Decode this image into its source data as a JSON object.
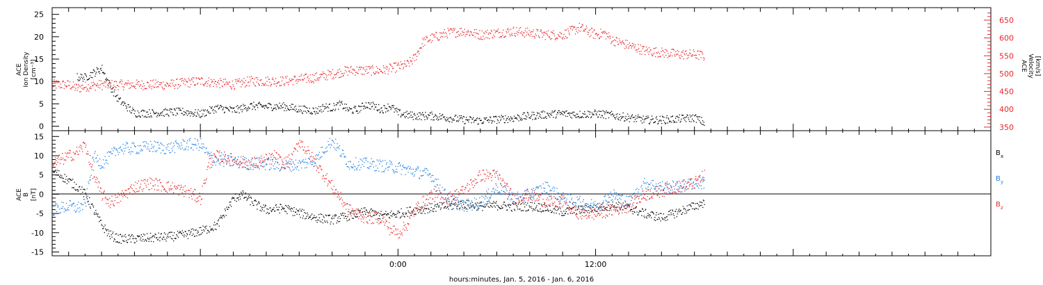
{
  "xlabel": "hours:minutes, Jan.  5, 2016 - Jan.  6, 2016",
  "colors": {
    "black": "#000000",
    "red": "#e8262b",
    "blue": "#1f7fe0"
  },
  "chart_data": [
    {
      "type": "scatter",
      "panel": "top",
      "ylabel_left": [
        "ACE",
        "Ion Density",
        "[cm⁻³]"
      ],
      "ylabel_right": [
        "ACE",
        "Velocity",
        "[km/s]"
      ],
      "x_range_hours": [
        -21,
        36
      ],
      "x_tick_labels": [
        {
          "hour": 0,
          "label": "0:00"
        },
        {
          "hour": 12,
          "label": "12:00"
        }
      ],
      "ylim_left": [
        -1,
        26.5
      ],
      "left_ticks": [
        "0",
        "5",
        "10",
        "15",
        "20",
        "25"
      ],
      "ylim_right": [
        340,
        685
      ],
      "right_ticks": [
        "350",
        "400",
        "450",
        "500",
        "550",
        "600",
        "650"
      ],
      "series": [
        {
          "color": "#000000",
          "axis": "left",
          "x": [
            -19.5,
            -19.0,
            -18.5,
            -18.0,
            -17.5,
            -17.0,
            -16.5,
            -16.0,
            -15.0,
            -14.0,
            -13.0,
            -12.0,
            -11.0,
            -10.0,
            -9.0,
            -8.0,
            -7.0,
            -6.0,
            -5.0,
            -4.5,
            -4.0,
            -3.5,
            -3.0,
            -2.5,
            -2.0,
            -1.5,
            -1.0,
            -0.5,
            0.0,
            0.5,
            1.0,
            2.0,
            3.0,
            4.0,
            5.0,
            6.0,
            7.0,
            8.0,
            9.0,
            10.0,
            11.0,
            12.0,
            13.0,
            14.0,
            15.0,
            16.0,
            17.0,
            18.0,
            18.6
          ],
          "values": [
            11,
            11,
            12,
            13,
            9,
            6,
            4.5,
            3,
            3,
            3.2,
            3.3,
            2.8,
            4.2,
            3.6,
            4.6,
            4.5,
            4.5,
            3.9,
            3.5,
            4.4,
            4.2,
            5,
            3.7,
            3.7,
            4.9,
            4.6,
            3.8,
            4.6,
            3,
            2.6,
            2.4,
            2.4,
            2,
            1.5,
            1.3,
            1.6,
            1.9,
            2.4,
            2.7,
            2.9,
            2.7,
            2.9,
            2.5,
            2,
            1.5,
            1.5,
            1.7,
            2,
            0.8
          ]
        },
        {
          "color": "#e8262b",
          "axis": "right",
          "x": [
            -21.0,
            -20.0,
            -19.5,
            -19.0,
            -18.0,
            -17.0,
            -16.0,
            -15.0,
            -14.0,
            -13.0,
            -12.0,
            -11.0,
            -10.0,
            -9.0,
            -8.0,
            -7.0,
            -6.0,
            -5.0,
            -4.0,
            -3.0,
            -2.0,
            -1.0,
            0.0,
            0.5,
            1.0,
            1.5,
            2.0,
            3.0,
            4.0,
            5.0,
            6.0,
            7.0,
            8.0,
            9.0,
            10.0,
            10.5,
            11.0,
            11.5,
            12.0,
            12.5,
            13.0,
            14.0,
            15.0,
            16.0,
            17.0,
            18.0,
            18.6
          ],
          "values": [
            470,
            470,
            460,
            465,
            470,
            470,
            470,
            470,
            470,
            475,
            480,
            475,
            470,
            480,
            480,
            480,
            485,
            490,
            500,
            510,
            510,
            510,
            520,
            525,
            545,
            590,
            600,
            615,
            620,
            610,
            615,
            620,
            615,
            610,
            610,
            620,
            630,
            620,
            610,
            615,
            595,
            580,
            565,
            560,
            555,
            555,
            550
          ]
        }
      ]
    },
    {
      "type": "scatter",
      "panel": "bottom",
      "ylabel_left": [
        "ACE",
        "B",
        "[nT]"
      ],
      "x_range_hours": [
        -21,
        36
      ],
      "ylim": [
        -16,
        16.5
      ],
      "left_ticks": [
        "-15",
        "-10",
        "-5",
        "0",
        "5",
        "10",
        "15"
      ],
      "series": [
        {
          "name": "Bx",
          "color": "#000000",
          "x": [
            -21.0,
            -20.5,
            -20.0,
            -19.5,
            -19.0,
            -18.5,
            -18.0,
            -17.5,
            -17.0,
            -16.0,
            -15.0,
            -14.0,
            -13.0,
            -12.0,
            -11.0,
            -10.0,
            -9.5,
            -9.0,
            -8.5,
            -8.0,
            -7.0,
            -6.0,
            -5.0,
            -4.0,
            -3.0,
            -2.0,
            -1.0,
            0.0,
            1.0,
            2.0,
            3.0,
            4.0,
            5.0,
            6.0,
            7.0,
            8.0,
            9.0,
            10.0,
            11.0,
            12.0,
            13.0,
            14.0,
            15.0,
            16.0,
            17.0,
            18.0,
            18.6
          ],
          "values": [
            6,
            5,
            3.5,
            2,
            0,
            -4,
            -8,
            -10.5,
            -11.5,
            -11.5,
            -11.2,
            -11,
            -10.5,
            -9.5,
            -8,
            -1,
            0,
            -1.5,
            -3,
            -4,
            -3.5,
            -4.8,
            -6,
            -6.5,
            -5.5,
            -4.5,
            -5.5,
            -5,
            -4,
            -3.5,
            -3,
            -2.5,
            -3,
            -2.8,
            -3.2,
            -3,
            -3.5,
            -4.5,
            -4,
            -3.5,
            -2.8,
            -3.5,
            -5,
            -6,
            -4.5,
            -3,
            -2
          ]
        },
        {
          "name": "By",
          "color": "#1f7fe0",
          "x": [
            -21.0,
            -20.0,
            -19.5,
            -19.0,
            -18.5,
            -18.0,
            -17.0,
            -16.0,
            -15.0,
            -14.0,
            -13.0,
            -12.0,
            -11.5,
            -11.0,
            -10.0,
            -9.0,
            -8.0,
            -7.0,
            -6.0,
            -5.0,
            -4.5,
            -4.0,
            -3.0,
            -2.0,
            -1.0,
            0.0,
            1.0,
            2.0,
            3.0,
            4.0,
            5.0,
            6.0,
            7.0,
            8.0,
            9.0,
            10.0,
            11.0,
            12.0,
            13.0,
            14.0,
            15.0,
            16.0,
            17.0,
            18.0,
            18.6
          ],
          "values": [
            -4,
            -3,
            -3.5,
            -2.5,
            10,
            8,
            12,
            12,
            12.5,
            12,
            13,
            13,
            10,
            9,
            8.5,
            8,
            8,
            7.5,
            7.8,
            9,
            12,
            14,
            8,
            8,
            7.5,
            7,
            6,
            5,
            -1,
            -3,
            -2,
            2,
            -1,
            0,
            2,
            -1,
            -2,
            -3,
            0,
            -2,
            3,
            2,
            2,
            3,
            3
          ]
        },
        {
          "name": "Bz",
          "color": "#e8262b",
          "x": [
            -21.0,
            -20.5,
            -20.0,
            -19.5,
            -19.0,
            -18.5,
            -18.0,
            -17.5,
            -17.0,
            -16.0,
            -15.0,
            -14.0,
            -13.0,
            -12.0,
            -11.5,
            -11.0,
            -10.0,
            -9.0,
            -8.0,
            -7.5,
            -7.0,
            -6.5,
            -6.0,
            -5.0,
            -4.0,
            -3.0,
            -2.0,
            -1.0,
            -0.5,
            0.0,
            0.5,
            1.0,
            2.0,
            3.0,
            4.0,
            5.0,
            6.0,
            7.0,
            8.0,
            9.0,
            10.0,
            11.0,
            12.0,
            13.0,
            14.0,
            15.0,
            16.0,
            17.0,
            18.0,
            18.6
          ],
          "values": [
            8,
            9,
            10,
            11,
            13,
            5,
            0,
            -2,
            -1,
            2,
            3,
            2,
            1,
            -1,
            8,
            10,
            9,
            8,
            9,
            10,
            8,
            9,
            14,
            8,
            2,
            -4,
            -6,
            -6,
            -9,
            -10,
            -8,
            -4,
            0,
            -1,
            1,
            5,
            5,
            -1,
            0,
            -2,
            -2,
            -5,
            -5,
            -4,
            -3,
            0,
            1,
            2,
            3,
            5
          ]
        }
      ]
    }
  ],
  "legend": [
    "B",
    "B",
    "B"
  ],
  "legend_subscripts": [
    "x",
    "y",
    "z"
  ]
}
